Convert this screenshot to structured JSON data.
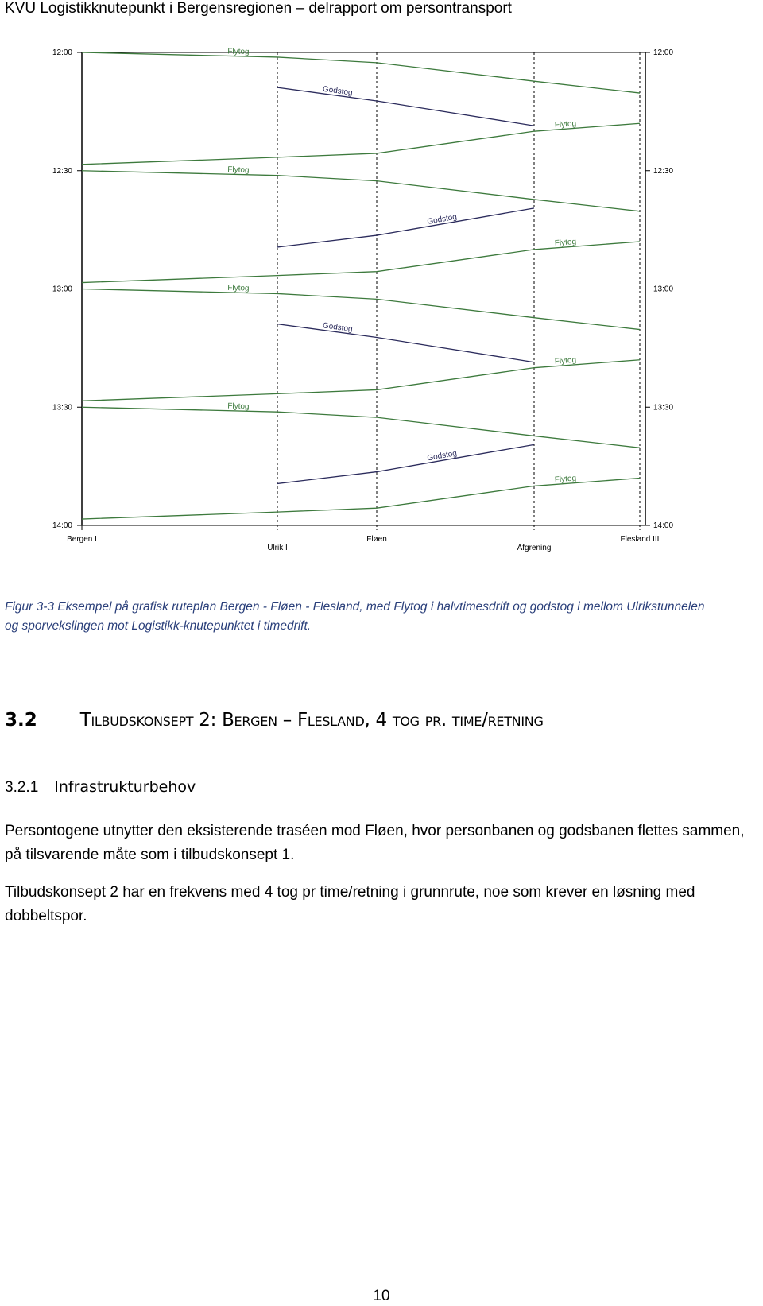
{
  "header": {
    "title": "KVU Logistikknutepunkt i Bergensregionen – delrapport om persontransport"
  },
  "chart_data": {
    "type": "line",
    "categories": [
      "Bergen I",
      "Ulrik I",
      "Fløen",
      "Afgrening",
      "Flesland III"
    ],
    "ylim": [
      720,
      840
    ],
    "y_reversed": true,
    "yticks": [
      {
        "value": 720,
        "label": "12:00"
      },
      {
        "value": 750,
        "label": "12:30"
      },
      {
        "value": 780,
        "label": "13:00"
      },
      {
        "value": 810,
        "label": "13:30"
      },
      {
        "value": 840,
        "label": "14:00"
      }
    ],
    "series": [
      {
        "name": "Flytog",
        "color": "#3d7a3d",
        "values": [
          720,
          721.2,
          722.6,
          727.3,
          730.3
        ]
      },
      {
        "name": "Godstog",
        "color": "#2b2b5c",
        "values": [
          null,
          728.9,
          732.3,
          738.6,
          null
        ]
      },
      {
        "name": "Flytog",
        "color": "#3d7a3d",
        "values": [
          748.4,
          746.6,
          745.6,
          740,
          738
        ]
      },
      {
        "name": "Flytog",
        "color": "#3d7a3d",
        "values": [
          750,
          751.2,
          752.6,
          757.3,
          760.3
        ]
      },
      {
        "name": "Godstog",
        "color": "#2b2b5c",
        "values": [
          null,
          769.4,
          766.4,
          759.5,
          null
        ]
      },
      {
        "name": "Flytog",
        "color": "#3d7a3d",
        "values": [
          778.4,
          776.6,
          775.6,
          770,
          768
        ]
      },
      {
        "name": "Flytog",
        "color": "#3d7a3d",
        "values": [
          780,
          781.2,
          782.6,
          787.3,
          790.3
        ]
      },
      {
        "name": "Godstog",
        "color": "#2b2b5c",
        "values": [
          null,
          788.9,
          792.3,
          798.6,
          null
        ]
      },
      {
        "name": "Flytog",
        "color": "#3d7a3d",
        "values": [
          808.4,
          806.6,
          805.6,
          800,
          798
        ]
      },
      {
        "name": "Flytog",
        "color": "#3d7a3d",
        "values": [
          810,
          811.2,
          812.6,
          817.3,
          820.3
        ]
      },
      {
        "name": "Godstog",
        "color": "#2b2b5c",
        "values": [
          null,
          829.4,
          826.4,
          819.5,
          null
        ]
      },
      {
        "name": "Flytog",
        "color": "#3d7a3d",
        "values": [
          838.4,
          836.6,
          835.6,
          830,
          828
        ]
      }
    ]
  },
  "caption": "Figur 3-3 Eksempel på grafisk ruteplan Bergen - Fløen - Flesland, med Flytog i halvtimesdrift og godstog i mellom Ulrikstunnelen og sporvekslingen mot Logistikk-knutepunktet i timedrift.",
  "section": {
    "number": "3.2",
    "title": "Tilbudskonsept 2: Bergen – Flesland, 4 tog pr. time/retning"
  },
  "subsection": {
    "number": "3.2.1",
    "title": "Infrastrukturbehov"
  },
  "paragraphs": [
    "Persontogene utnytter den eksisterende traséen mod Fløen, hvor personbanen og godsbanen flettes sammen, på tilsvarende måte som i tilbudskonsept 1.",
    "Tilbudskonsept 2 har en frekvens med 4 tog pr time/retning i grunnrute, noe som krever en løsning med dobbeltspor."
  ],
  "page_number": "10"
}
